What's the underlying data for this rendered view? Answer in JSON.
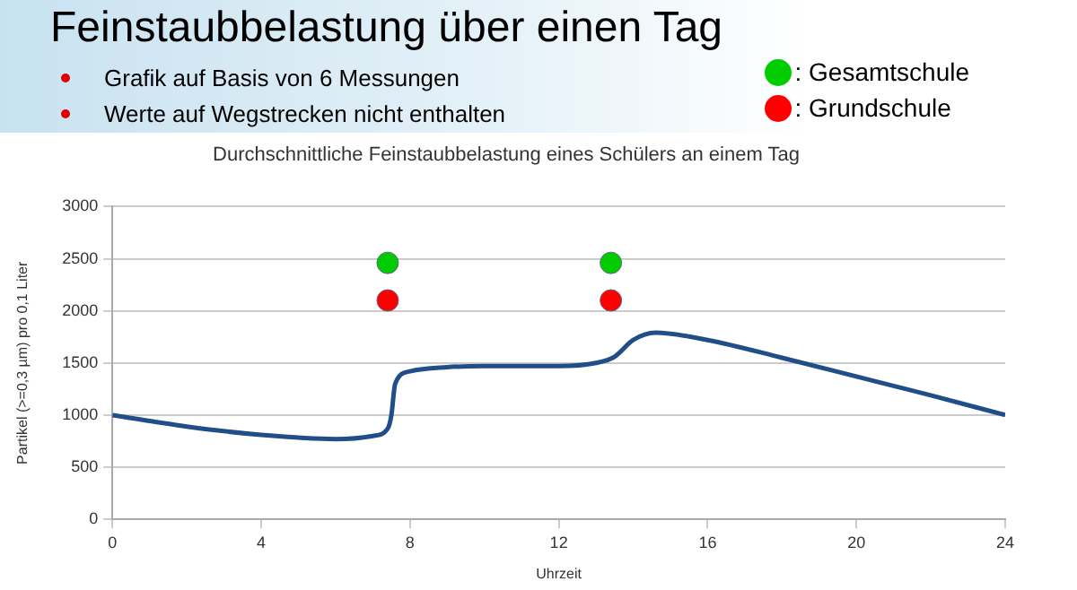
{
  "chart_data": {
    "type": "line",
    "title": "Feinstaubbelastung über einen Tag",
    "subtitle": "Durchschnittliche Feinstaubbelastung eines Schülers an einem Tag",
    "annotations": [
      "Grafik auf Basis von 6 Messungen",
      "Werte auf Wegstrecken nicht enthalten"
    ],
    "xlabel": "Uhrzeit",
    "ylabel": "Partikel (>=0,3 µm) pro 0,1 Liter",
    "xlim": [
      0,
      24
    ],
    "xticks": [
      0,
      4,
      8,
      12,
      16,
      20,
      24
    ],
    "ylim": [
      0,
      3000
    ],
    "yticks": [
      0,
      500,
      1000,
      1500,
      2000,
      2500,
      3000
    ],
    "grid": "y",
    "legend": "top right",
    "marker": "none",
    "line_style": "solid",
    "series": [
      {
        "color": "#1f4e89",
        "x": [
          0,
          2,
          4,
          6,
          7,
          7.4,
          7.5,
          7.6,
          8,
          9,
          10,
          12,
          13,
          13.5,
          14,
          14.6,
          16,
          18,
          20,
          22,
          24
        ],
        "values": [
          1000,
          890,
          810,
          770,
          800,
          870,
          1000,
          1300,
          1420,
          1460,
          1470,
          1470,
          1500,
          1560,
          1720,
          1790,
          1720,
          1550,
          1370,
          1190,
          1000
        ]
      },
      {
        "type": "scatter",
        "name": ": Gesamtschule",
        "color": "#00cc00",
        "marker": "circle",
        "x": [
          7.4,
          13.4
        ],
        "values": [
          2460,
          2460
        ]
      },
      {
        "type": "scatter",
        "name": ": Grundschule",
        "color": "#ff0000",
        "marker": "circle",
        "x": [
          7.4,
          13.4
        ],
        "values": [
          2100,
          2100
        ]
      }
    ]
  }
}
